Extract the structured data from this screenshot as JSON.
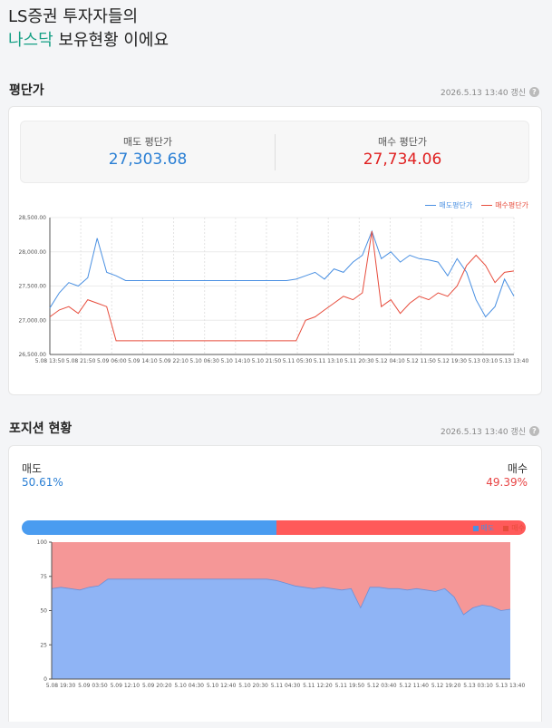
{
  "header": {
    "line1": "LS증권 투자자들의",
    "line2_accent": "나스닥",
    "line2_rest": " 보유현황 이에요"
  },
  "avg_section": {
    "title": "평단가",
    "updated": "2026.5.13 13:40 갱신",
    "help_icon": "?",
    "sell_label": "매도 평단가",
    "sell_value": "27,303.68",
    "buy_label": "매수 평단가",
    "buy_value": "27,734.06",
    "legend_sell": "매도평단가",
    "legend_buy": "매수평단가"
  },
  "pos_section": {
    "title": "포지션 현황",
    "updated": "2026.5.13 13:40 갱신",
    "help_icon": "?",
    "sell_label": "매도",
    "sell_pct": "50.61%",
    "buy_label": "매수",
    "buy_pct": "49.39%",
    "legend_sell": "매도",
    "legend_buy": "매수"
  },
  "colors": {
    "accent": "#16a085",
    "sell": "#4a90e2",
    "buy": "#e74c3c",
    "sell_bar": "#4a9cf0",
    "buy_bar": "#ff5a5a",
    "area_sell": "#8fb4f5",
    "area_buy": "#f59797"
  },
  "chart_data": [
    {
      "type": "line",
      "ylim": [
        26500,
        28500
      ],
      "yticks": [
        "28,500.00",
        "28,000.00",
        "27,500.00",
        "27,000.00",
        "26,500.00"
      ],
      "xticks": [
        "5.08 13:50",
        "5.08 21:50",
        "5.09 06:00",
        "5.09 14:10",
        "5.09 22:10",
        "5.10 06:30",
        "5.10 14:10",
        "5.10 21:50",
        "5.11 05:30",
        "5.11 13:10",
        "5.11 20:30",
        "5.12 04:10",
        "5.12 11:50",
        "5.12 19:30",
        "5.13 03:10",
        "5.13 13:40"
      ],
      "series": [
        {
          "name": "매도평단가",
          "values": [
            27180,
            27400,
            27550,
            27500,
            27620,
            28200,
            27700,
            27650,
            27580,
            27580,
            27580,
            27580,
            27580,
            27580,
            27580,
            27580,
            27580,
            27580,
            27580,
            27580,
            27580,
            27580,
            27580,
            27580,
            27580,
            27580,
            27600,
            27650,
            27700,
            27600,
            27750,
            27700,
            27850,
            27950,
            28300,
            27900,
            28000,
            27850,
            27950,
            27900,
            27880,
            27850,
            27650,
            27900,
            27700,
            27300,
            27050,
            27200,
            27600,
            27350
          ]
        },
        {
          "name": "매수평단가",
          "values": [
            27050,
            27150,
            27200,
            27100,
            27300,
            27250,
            27200,
            26700,
            26700,
            26700,
            26700,
            26700,
            26700,
            26700,
            26700,
            26700,
            26700,
            26700,
            26700,
            26700,
            26700,
            26700,
            26700,
            26700,
            26700,
            26700,
            26700,
            27000,
            27050,
            27150,
            27250,
            27350,
            27300,
            27400,
            28300,
            27200,
            27300,
            27100,
            27250,
            27350,
            27300,
            27400,
            27350,
            27500,
            27800,
            27950,
            27800,
            27550,
            27700,
            27720
          ]
        }
      ]
    },
    {
      "type": "area",
      "ylim": [
        0,
        100
      ],
      "yticks": [
        "100",
        "75",
        "50",
        "25",
        "0"
      ],
      "xticks": [
        "5.08 19:30",
        "5.09 03:50",
        "5.09 12:10",
        "5.09 20:20",
        "5.10 04:30",
        "5.10 12:40",
        "5.10 20:30",
        "5.11 04:30",
        "5.11 12:20",
        "5.11 19:50",
        "5.12 03:40",
        "5.12 11:40",
        "5.12 19:20",
        "5.13 03:10",
        "5.13 13:40"
      ],
      "series": [
        {
          "name": "매도",
          "values": [
            66,
            67,
            66,
            65,
            67,
            68,
            73,
            73,
            73,
            73,
            73,
            73,
            73,
            73,
            73,
            73,
            73,
            73,
            73,
            73,
            73,
            73,
            73,
            73,
            72,
            70,
            68,
            67,
            66,
            67,
            66,
            65,
            66,
            52,
            67,
            67,
            66,
            66,
            65,
            66,
            65,
            64,
            66,
            60,
            47,
            52,
            54,
            53,
            50,
            51
          ]
        },
        {
          "name": "매수",
          "values": [
            34,
            33,
            34,
            35,
            33,
            32,
            27,
            27,
            27,
            27,
            27,
            27,
            27,
            27,
            27,
            27,
            27,
            27,
            27,
            27,
            27,
            27,
            27,
            27,
            28,
            30,
            32,
            33,
            34,
            33,
            34,
            35,
            34,
            48,
            33,
            33,
            34,
            34,
            35,
            34,
            35,
            36,
            34,
            40,
            53,
            48,
            46,
            47,
            50,
            49
          ]
        }
      ]
    }
  ]
}
